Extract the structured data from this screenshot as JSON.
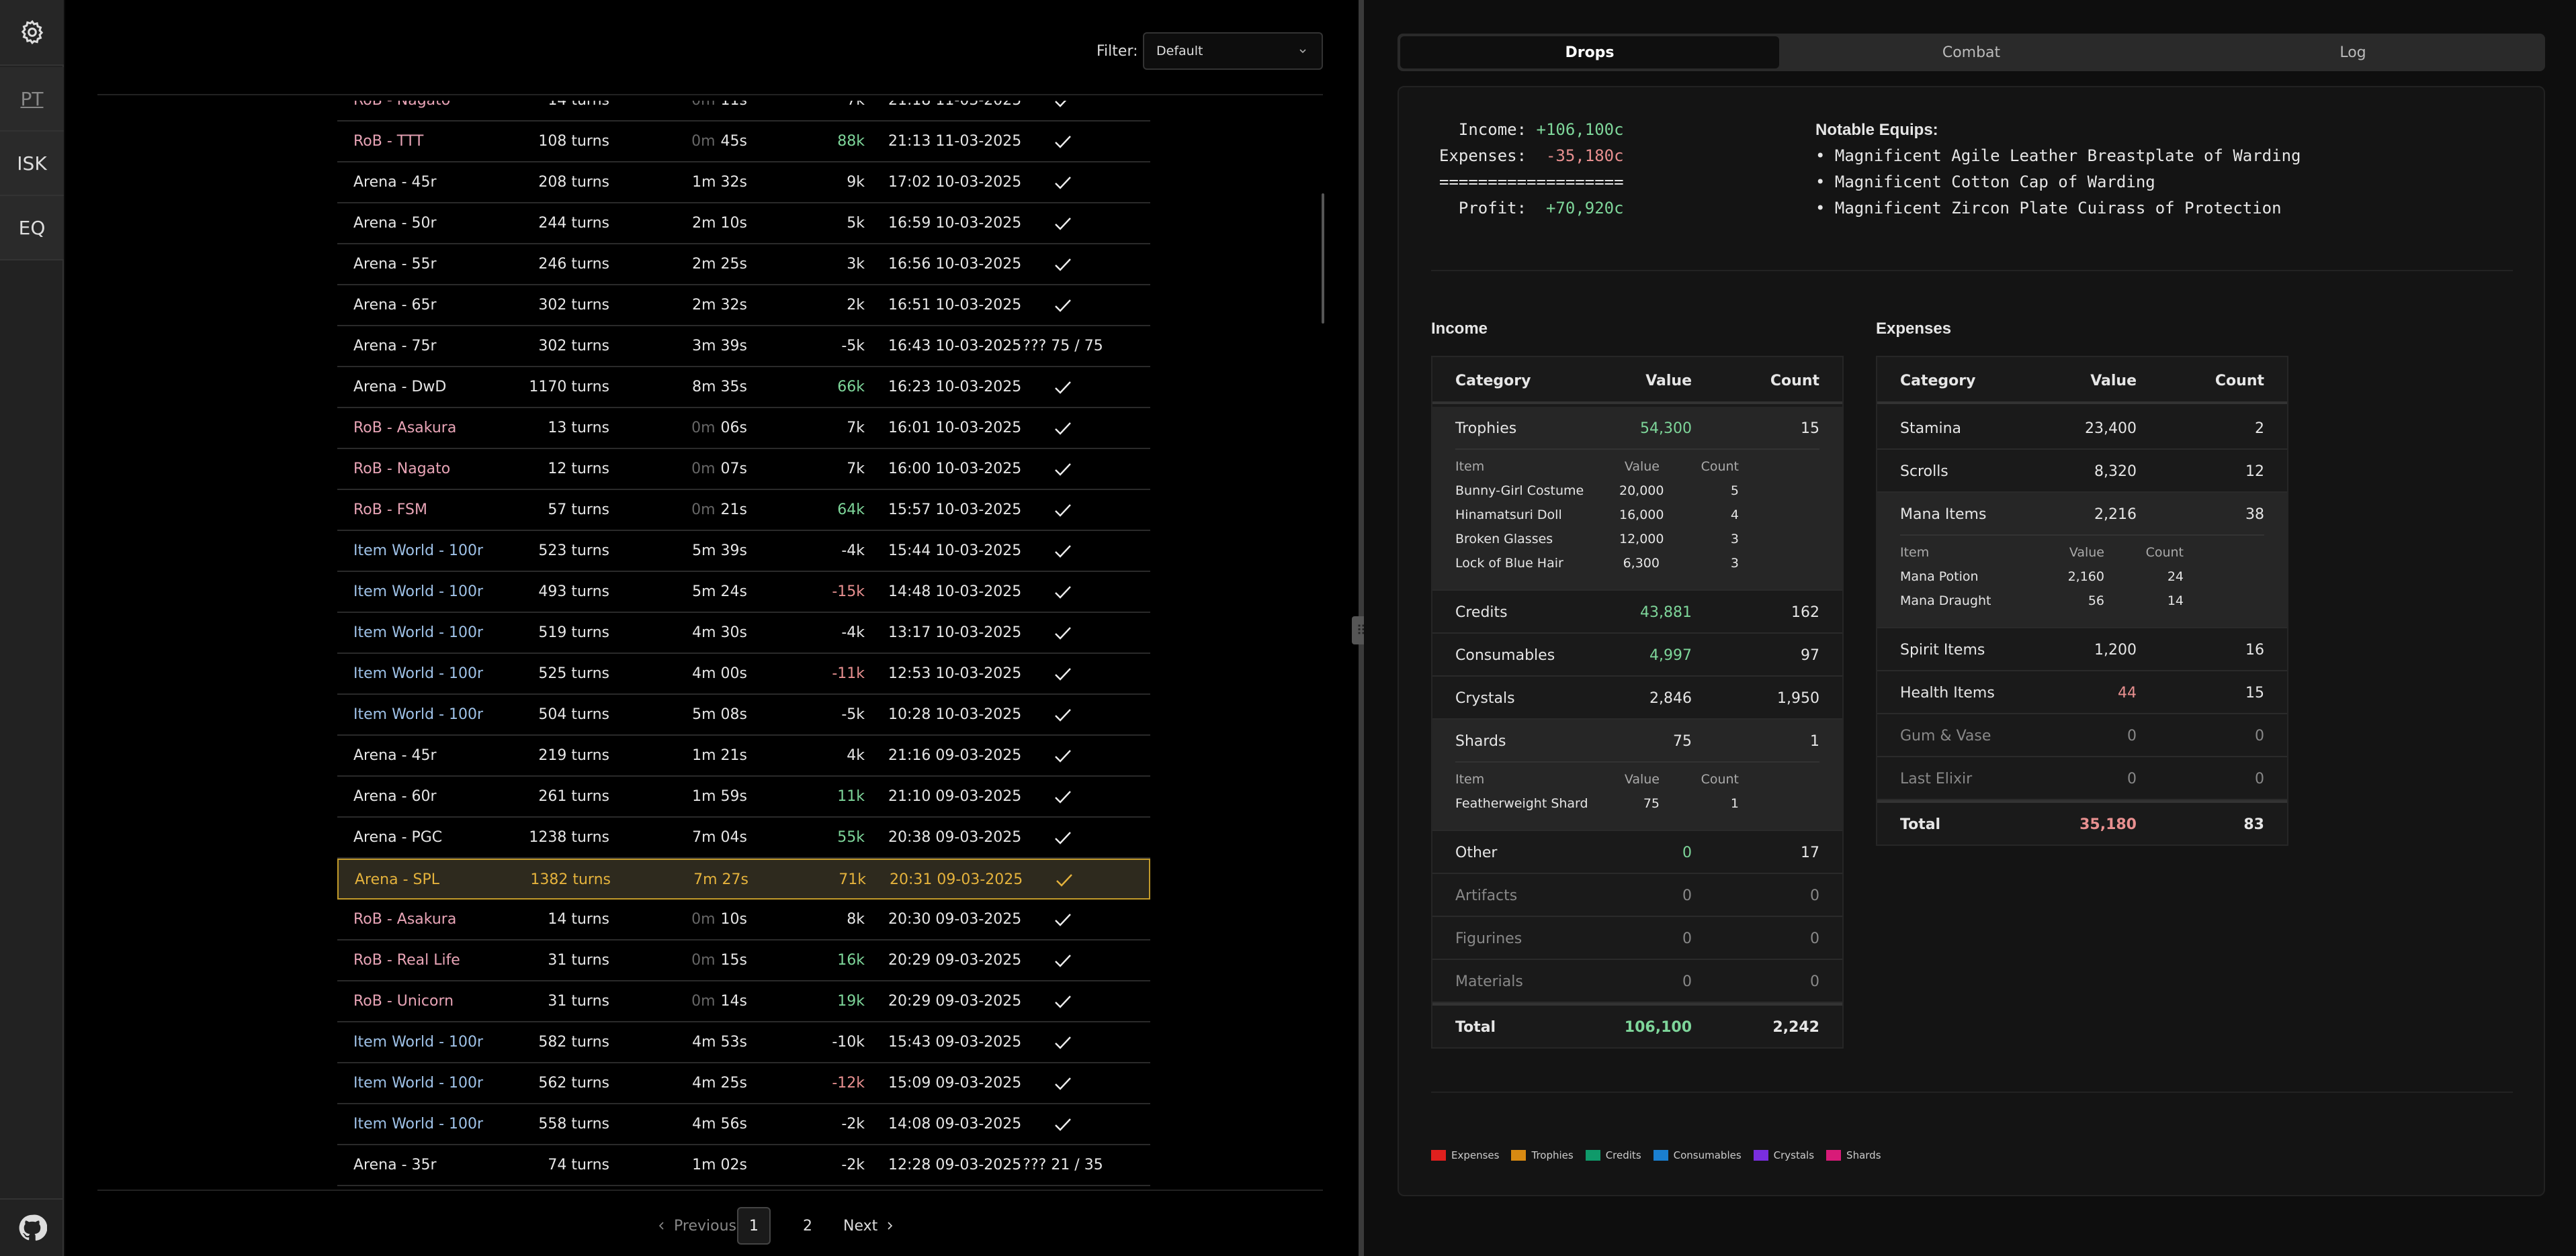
{
  "sidebar": {
    "pt": "PT",
    "isk": "ISK",
    "eq": "EQ"
  },
  "filter": {
    "label": "Filter:",
    "value": "Default"
  },
  "runs": [
    {
      "name": "RoB - Nagato",
      "cat": "rob",
      "turns": "14 turns",
      "m": "0m",
      "s": "11s",
      "gain": "7k",
      "g": "neu",
      "date": "21:18 11-03-2025",
      "status": "check"
    },
    {
      "name": "RoB - TTT",
      "cat": "rob",
      "turns": "108 turns",
      "m": "0m",
      "s": "45s",
      "gain": "88k",
      "g": "pos",
      "date": "21:13 11-03-2025",
      "status": "check"
    },
    {
      "name": "Arena - 45r",
      "cat": "arena",
      "turns": "208 turns",
      "m": "",
      "s": "1m 32s",
      "gain": "9k",
      "g": "neu",
      "date": "17:02 10-03-2025",
      "status": "check"
    },
    {
      "name": "Arena - 50r",
      "cat": "arena",
      "turns": "244 turns",
      "m": "",
      "s": "2m 10s",
      "gain": "5k",
      "g": "neu",
      "date": "16:59 10-03-2025",
      "status": "check"
    },
    {
      "name": "Arena - 55r",
      "cat": "arena",
      "turns": "246 turns",
      "m": "",
      "s": "2m 25s",
      "gain": "3k",
      "g": "neu",
      "date": "16:56 10-03-2025",
      "status": "check"
    },
    {
      "name": "Arena - 65r",
      "cat": "arena",
      "turns": "302 turns",
      "m": "",
      "s": "2m 32s",
      "gain": "2k",
      "g": "neu",
      "date": "16:51 10-03-2025",
      "status": "check"
    },
    {
      "name": "Arena - 75r",
      "cat": "arena",
      "turns": "302 turns",
      "m": "",
      "s": "3m 39s",
      "gain": "-5k",
      "g": "neu",
      "date": "16:43 10-03-2025",
      "status": "??? 75 / 75"
    },
    {
      "name": "Arena - DwD",
      "cat": "arena",
      "turns": "1170 turns",
      "m": "",
      "s": "8m 35s",
      "gain": "66k",
      "g": "pos",
      "date": "16:23 10-03-2025",
      "status": "check"
    },
    {
      "name": "RoB - Asakura",
      "cat": "rob",
      "turns": "13 turns",
      "m": "0m",
      "s": "06s",
      "gain": "7k",
      "g": "neu",
      "date": "16:01 10-03-2025",
      "status": "check"
    },
    {
      "name": "RoB - Nagato",
      "cat": "rob",
      "turns": "12 turns",
      "m": "0m",
      "s": "07s",
      "gain": "7k",
      "g": "neu",
      "date": "16:00 10-03-2025",
      "status": "check"
    },
    {
      "name": "RoB - FSM",
      "cat": "rob",
      "turns": "57 turns",
      "m": "0m",
      "s": "21s",
      "gain": "64k",
      "g": "pos",
      "date": "15:57 10-03-2025",
      "status": "check"
    },
    {
      "name": "Item World - 100r",
      "cat": "item",
      "turns": "523 turns",
      "m": "",
      "s": "5m 39s",
      "gain": "-4k",
      "g": "neu",
      "date": "15:44 10-03-2025",
      "status": "check"
    },
    {
      "name": "Item World - 100r",
      "cat": "item",
      "turns": "493 turns",
      "m": "",
      "s": "5m 24s",
      "gain": "-15k",
      "g": "neg",
      "date": "14:48 10-03-2025",
      "status": "check"
    },
    {
      "name": "Item World - 100r",
      "cat": "item",
      "turns": "519 turns",
      "m": "",
      "s": "4m 30s",
      "gain": "-4k",
      "g": "neu",
      "date": "13:17 10-03-2025",
      "status": "check"
    },
    {
      "name": "Item World - 100r",
      "cat": "item",
      "turns": "525 turns",
      "m": "",
      "s": "4m 00s",
      "gain": "-11k",
      "g": "neg",
      "date": "12:53 10-03-2025",
      "status": "check"
    },
    {
      "name": "Item World - 100r",
      "cat": "item",
      "turns": "504 turns",
      "m": "",
      "s": "5m 08s",
      "gain": "-5k",
      "g": "neu",
      "date": "10:28 10-03-2025",
      "status": "check"
    },
    {
      "name": "Arena - 45r",
      "cat": "arena",
      "turns": "219 turns",
      "m": "",
      "s": "1m 21s",
      "gain": "4k",
      "g": "neu",
      "date": "21:16 09-03-2025",
      "status": "check"
    },
    {
      "name": "Arena - 60r",
      "cat": "arena",
      "turns": "261 turns",
      "m": "",
      "s": "1m 59s",
      "gain": "11k",
      "g": "pos",
      "date": "21:10 09-03-2025",
      "status": "check"
    },
    {
      "name": "Arena - PGC",
      "cat": "arena",
      "turns": "1238 turns",
      "m": "",
      "s": "7m 04s",
      "gain": "55k",
      "g": "pos",
      "date": "20:38 09-03-2025",
      "status": "check"
    },
    {
      "name": "Arena - SPL",
      "cat": "arena",
      "turns": "1382 turns",
      "m": "",
      "s": "7m 27s",
      "gain": "71k",
      "g": "neu",
      "date": "20:31 09-03-2025",
      "status": "check",
      "hl": true
    },
    {
      "name": "RoB - Asakura",
      "cat": "rob",
      "turns": "14 turns",
      "m": "0m",
      "s": "10s",
      "gain": "8k",
      "g": "neu",
      "date": "20:30 09-03-2025",
      "status": "check"
    },
    {
      "name": "RoB - Real Life",
      "cat": "rob",
      "turns": "31 turns",
      "m": "0m",
      "s": "15s",
      "gain": "16k",
      "g": "pos",
      "date": "20:29 09-03-2025",
      "status": "check"
    },
    {
      "name": "RoB - Unicorn",
      "cat": "rob",
      "turns": "31 turns",
      "m": "0m",
      "s": "14s",
      "gain": "19k",
      "g": "pos",
      "date": "20:29 09-03-2025",
      "status": "check"
    },
    {
      "name": "Item World - 100r",
      "cat": "item",
      "turns": "582 turns",
      "m": "",
      "s": "4m 53s",
      "gain": "-10k",
      "g": "neu",
      "date": "15:43 09-03-2025",
      "status": "check"
    },
    {
      "name": "Item World - 100r",
      "cat": "item",
      "turns": "562 turns",
      "m": "",
      "s": "4m 25s",
      "gain": "-12k",
      "g": "neg",
      "date": "15:09 09-03-2025",
      "status": "check"
    },
    {
      "name": "Item World - 100r",
      "cat": "item",
      "turns": "558 turns",
      "m": "",
      "s": "4m 56s",
      "gain": "-2k",
      "g": "neu",
      "date": "14:08 09-03-2025",
      "status": "check"
    },
    {
      "name": "Arena - 35r",
      "cat": "arena",
      "turns": "74 turns",
      "m": "",
      "s": "1m 02s",
      "gain": "-2k",
      "g": "neu",
      "date": "12:28 09-03-2025",
      "status": "??? 21 / 35"
    }
  ],
  "pager": {
    "prev": "Previous",
    "p1": "1",
    "p2": "2",
    "next": "Next"
  },
  "tabs": [
    "Drops",
    "Combat",
    "Log"
  ],
  "summary": {
    "income_label": "  Income:",
    "income_value": "+106,100c",
    "expenses_label": "Expenses:",
    "expenses_value": "-35,180c",
    "sep": "===================",
    "profit_label": "  Profit:",
    "profit_value": "+70,920c"
  },
  "notable": {
    "title": "Notable Equips:",
    "items": [
      "Magnificent Agile Leather Breastplate of Warding",
      "Magnificent Cotton Cap of Warding",
      "Magnificent Zircon Plate Cuirass of Protection"
    ]
  },
  "income": {
    "title": "Income",
    "headers": [
      "Category",
      "Value",
      "Count"
    ],
    "sub_headers": [
      "Item",
      "Value",
      "Count"
    ],
    "rows": [
      {
        "cat": "Trophies",
        "value": "54,300",
        "count": "15",
        "vc": "pos",
        "expanded": true,
        "items": [
          [
            "Bunny-Girl Costume",
            "20,000",
            "5"
          ],
          [
            "Hinamatsuri Doll",
            "16,000",
            "4"
          ],
          [
            "Broken Glasses",
            "12,000",
            "3"
          ],
          [
            "Lock of Blue Hair",
            "6,300",
            "3"
          ]
        ]
      },
      {
        "cat": "Credits",
        "value": "43,881",
        "count": "162",
        "vc": "pos"
      },
      {
        "cat": "Consumables",
        "value": "4,997",
        "count": "97",
        "vc": "pos"
      },
      {
        "cat": "Crystals",
        "value": "2,846",
        "count": "1,950",
        "vc": "neu"
      },
      {
        "cat": "Shards",
        "value": "75",
        "count": "1",
        "vc": "neu",
        "expanded": true,
        "items": [
          [
            "Featherweight Shard",
            "75",
            "1"
          ]
        ]
      },
      {
        "cat": "Other",
        "value": "0",
        "count": "17",
        "vc": "pos"
      },
      {
        "cat": "Artifacts",
        "value": "0",
        "count": "0",
        "vc": "muted",
        "muted": true
      },
      {
        "cat": "Figurines",
        "value": "0",
        "count": "0",
        "vc": "muted",
        "muted": true
      },
      {
        "cat": "Materials",
        "value": "0",
        "count": "0",
        "vc": "muted",
        "muted": true
      }
    ],
    "total": {
      "label": "Total",
      "value": "106,100",
      "count": "2,242"
    }
  },
  "expenses": {
    "title": "Expenses",
    "headers": [
      "Category",
      "Value",
      "Count"
    ],
    "sub_headers": [
      "Item",
      "Value",
      "Count"
    ],
    "rows": [
      {
        "cat": "Stamina",
        "value": "23,400",
        "count": "2",
        "vc": "neu"
      },
      {
        "cat": "Scrolls",
        "value": "8,320",
        "count": "12",
        "vc": "neu"
      },
      {
        "cat": "Mana Items",
        "value": "2,216",
        "count": "38",
        "vc": "neu",
        "expanded": true,
        "items": [
          [
            "Mana Potion",
            "2,160",
            "24"
          ],
          [
            "Mana Draught",
            "56",
            "14"
          ]
        ]
      },
      {
        "cat": "Spirit Items",
        "value": "1,200",
        "count": "16",
        "vc": "neu"
      },
      {
        "cat": "Health Items",
        "value": "44",
        "count": "15",
        "vc": "neg"
      },
      {
        "cat": "Gum & Vase",
        "value": "0",
        "count": "0",
        "vc": "muted",
        "muted": true
      },
      {
        "cat": "Last Elixir",
        "value": "0",
        "count": "0",
        "vc": "muted",
        "muted": true
      }
    ],
    "total": {
      "label": "Total",
      "value": "35,180",
      "count": "83"
    }
  },
  "legend": [
    {
      "label": "Expenses",
      "color": "#e0201e"
    },
    {
      "label": "Trophies",
      "color": "#d88a12"
    },
    {
      "label": "Credits",
      "color": "#0f9a6a"
    },
    {
      "label": "Consumables",
      "color": "#1a7fd0"
    },
    {
      "label": "Crystals",
      "color": "#7a2ee0"
    },
    {
      "label": "Shards",
      "color": "#d81b78"
    }
  ]
}
